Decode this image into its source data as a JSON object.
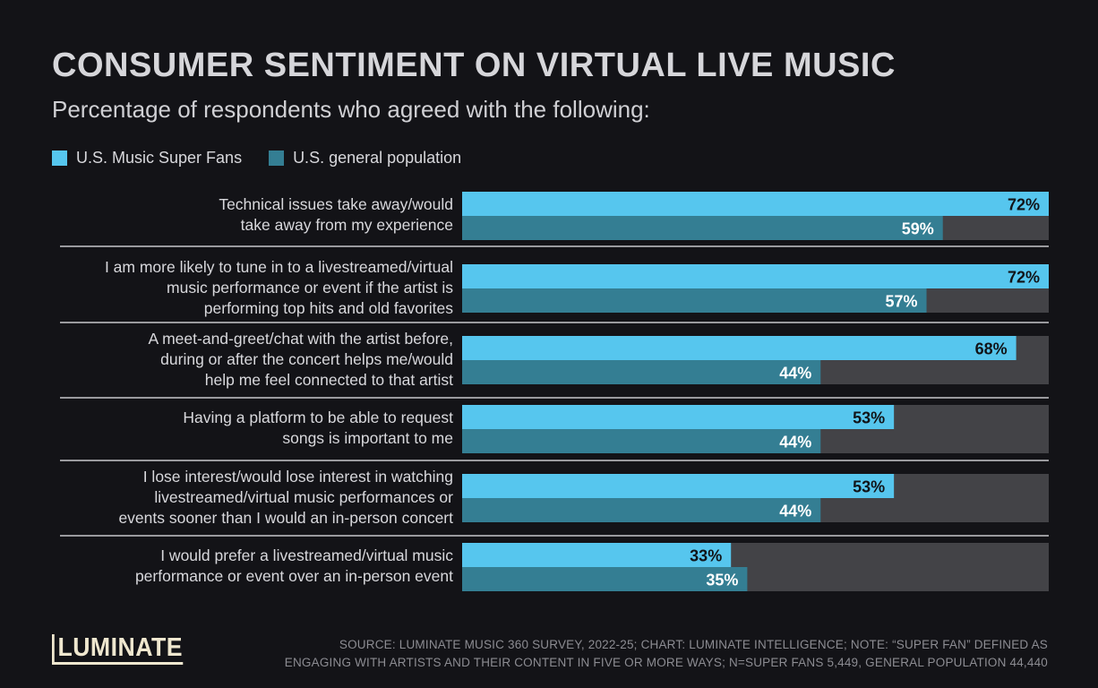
{
  "header": {
    "title": "CONSUMER SENTIMENT ON VIRTUAL LIVE MUSIC",
    "subtitle": "Percentage of respondents who agreed with the following:"
  },
  "legend": [
    {
      "label": "U.S. Music Super Fans",
      "color": "#56c6ee"
    },
    {
      "label": "U.S. general population",
      "color": "#347e93"
    }
  ],
  "colors": {
    "background": "#131317",
    "track": "#434347",
    "super_fans": "#56c6ee",
    "general_population": "#347e93",
    "divider": "#c8c8cc"
  },
  "chart_data": {
    "type": "bar",
    "orientation": "horizontal",
    "title": "CONSUMER SENTIMENT ON VIRTUAL LIVE MUSIC",
    "subtitle": "Percentage of respondents who agreed with the following:",
    "xlim": [
      0,
      100
    ],
    "legend_position": "top-left",
    "categories": [
      [
        "Technical issues take away/would",
        "take away from my experience"
      ],
      [
        "I am more likely to tune in to a livestreamed/virtual",
        "music performance or event if the artist is",
        "performing top hits and old favorites"
      ],
      [
        "A meet-and-greet/chat with the artist before,",
        "during or after the concert helps me/would",
        "help me feel connected to that artist"
      ],
      [
        "Having a platform to be able to request",
        "songs is important to me"
      ],
      [
        "I lose interest/would lose interest in watching",
        "livestreamed/virtual music performances or",
        "events sooner than I would an in-person concert"
      ],
      [
        "I would prefer a livestreamed/virtual music",
        "performance or event over an in-person event"
      ]
    ],
    "series": [
      {
        "name": "U.S. Music Super Fans",
        "values": [
          72,
          72,
          68,
          53,
          53,
          33
        ],
        "labels": [
          "72%",
          "72%",
          "68%",
          "53%",
          "53%",
          "33%"
        ]
      },
      {
        "name": "U.S. general population",
        "values": [
          59,
          57,
          44,
          44,
          44,
          35
        ],
        "labels": [
          "59%",
          "57%",
          "44%",
          "44%",
          "44%",
          "35%"
        ]
      }
    ]
  },
  "footer": {
    "logo": "LUMINATE",
    "source_line1": "SOURCE: LUMINATE MUSIC 360 SURVEY, 2022-25; CHART: LUMINATE INTELLIGENCE; NOTE: “SUPER FAN” DEFINED AS",
    "source_line2": "ENGAGING WITH ARTISTS AND THEIR CONTENT IN FIVE OR MORE WAYS; N=SUPER FANS 5,449, GENERAL POPULATION 44,440"
  }
}
